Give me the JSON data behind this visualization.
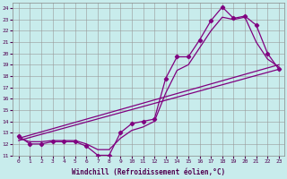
{
  "bg_color": "#c8ecec",
  "line_color": "#800080",
  "grid_color": "#999999",
  "xlim": [
    -0.5,
    23.5
  ],
  "ylim": [
    11,
    24.5
  ],
  "xticks": [
    0,
    1,
    2,
    3,
    4,
    5,
    6,
    7,
    8,
    9,
    10,
    11,
    12,
    13,
    14,
    15,
    16,
    17,
    18,
    19,
    20,
    21,
    22,
    23
  ],
  "yticks": [
    11,
    12,
    13,
    14,
    15,
    16,
    17,
    18,
    19,
    20,
    21,
    22,
    23,
    24
  ],
  "xlabel": "Windchill (Refroidissement éolien,°C)",
  "spiky_x": [
    0,
    1,
    2,
    3,
    4,
    5,
    6,
    7,
    8,
    9,
    10,
    11,
    12,
    13,
    14,
    15,
    16,
    17,
    18,
    19,
    20,
    21,
    22,
    23
  ],
  "spiky_y": [
    12.7,
    12.0,
    12.0,
    12.2,
    12.2,
    12.2,
    11.8,
    11.0,
    11.0,
    13.0,
    13.8,
    14.0,
    14.2,
    17.8,
    19.7,
    19.7,
    21.2,
    22.9,
    24.1,
    23.1,
    23.3,
    22.5,
    20.0,
    18.6
  ],
  "line2_x": [
    0,
    1,
    2,
    3,
    4,
    5,
    6,
    7,
    8,
    9,
    10,
    11,
    12,
    13,
    14,
    15,
    16,
    17,
    18,
    19,
    20,
    21,
    22,
    23
  ],
  "line2_y": [
    12.5,
    12.2,
    12.2,
    12.3,
    12.3,
    12.3,
    12.0,
    11.5,
    11.5,
    12.5,
    13.2,
    13.5,
    14.0,
    16.5,
    18.5,
    19.0,
    20.5,
    22.0,
    23.2,
    23.0,
    23.2,
    21.0,
    19.5,
    18.8
  ],
  "line3_x": [
    0,
    23
  ],
  "line3_y": [
    12.5,
    19.0
  ],
  "line4_x": [
    0,
    23
  ],
  "line4_y": [
    12.3,
    18.6
  ]
}
